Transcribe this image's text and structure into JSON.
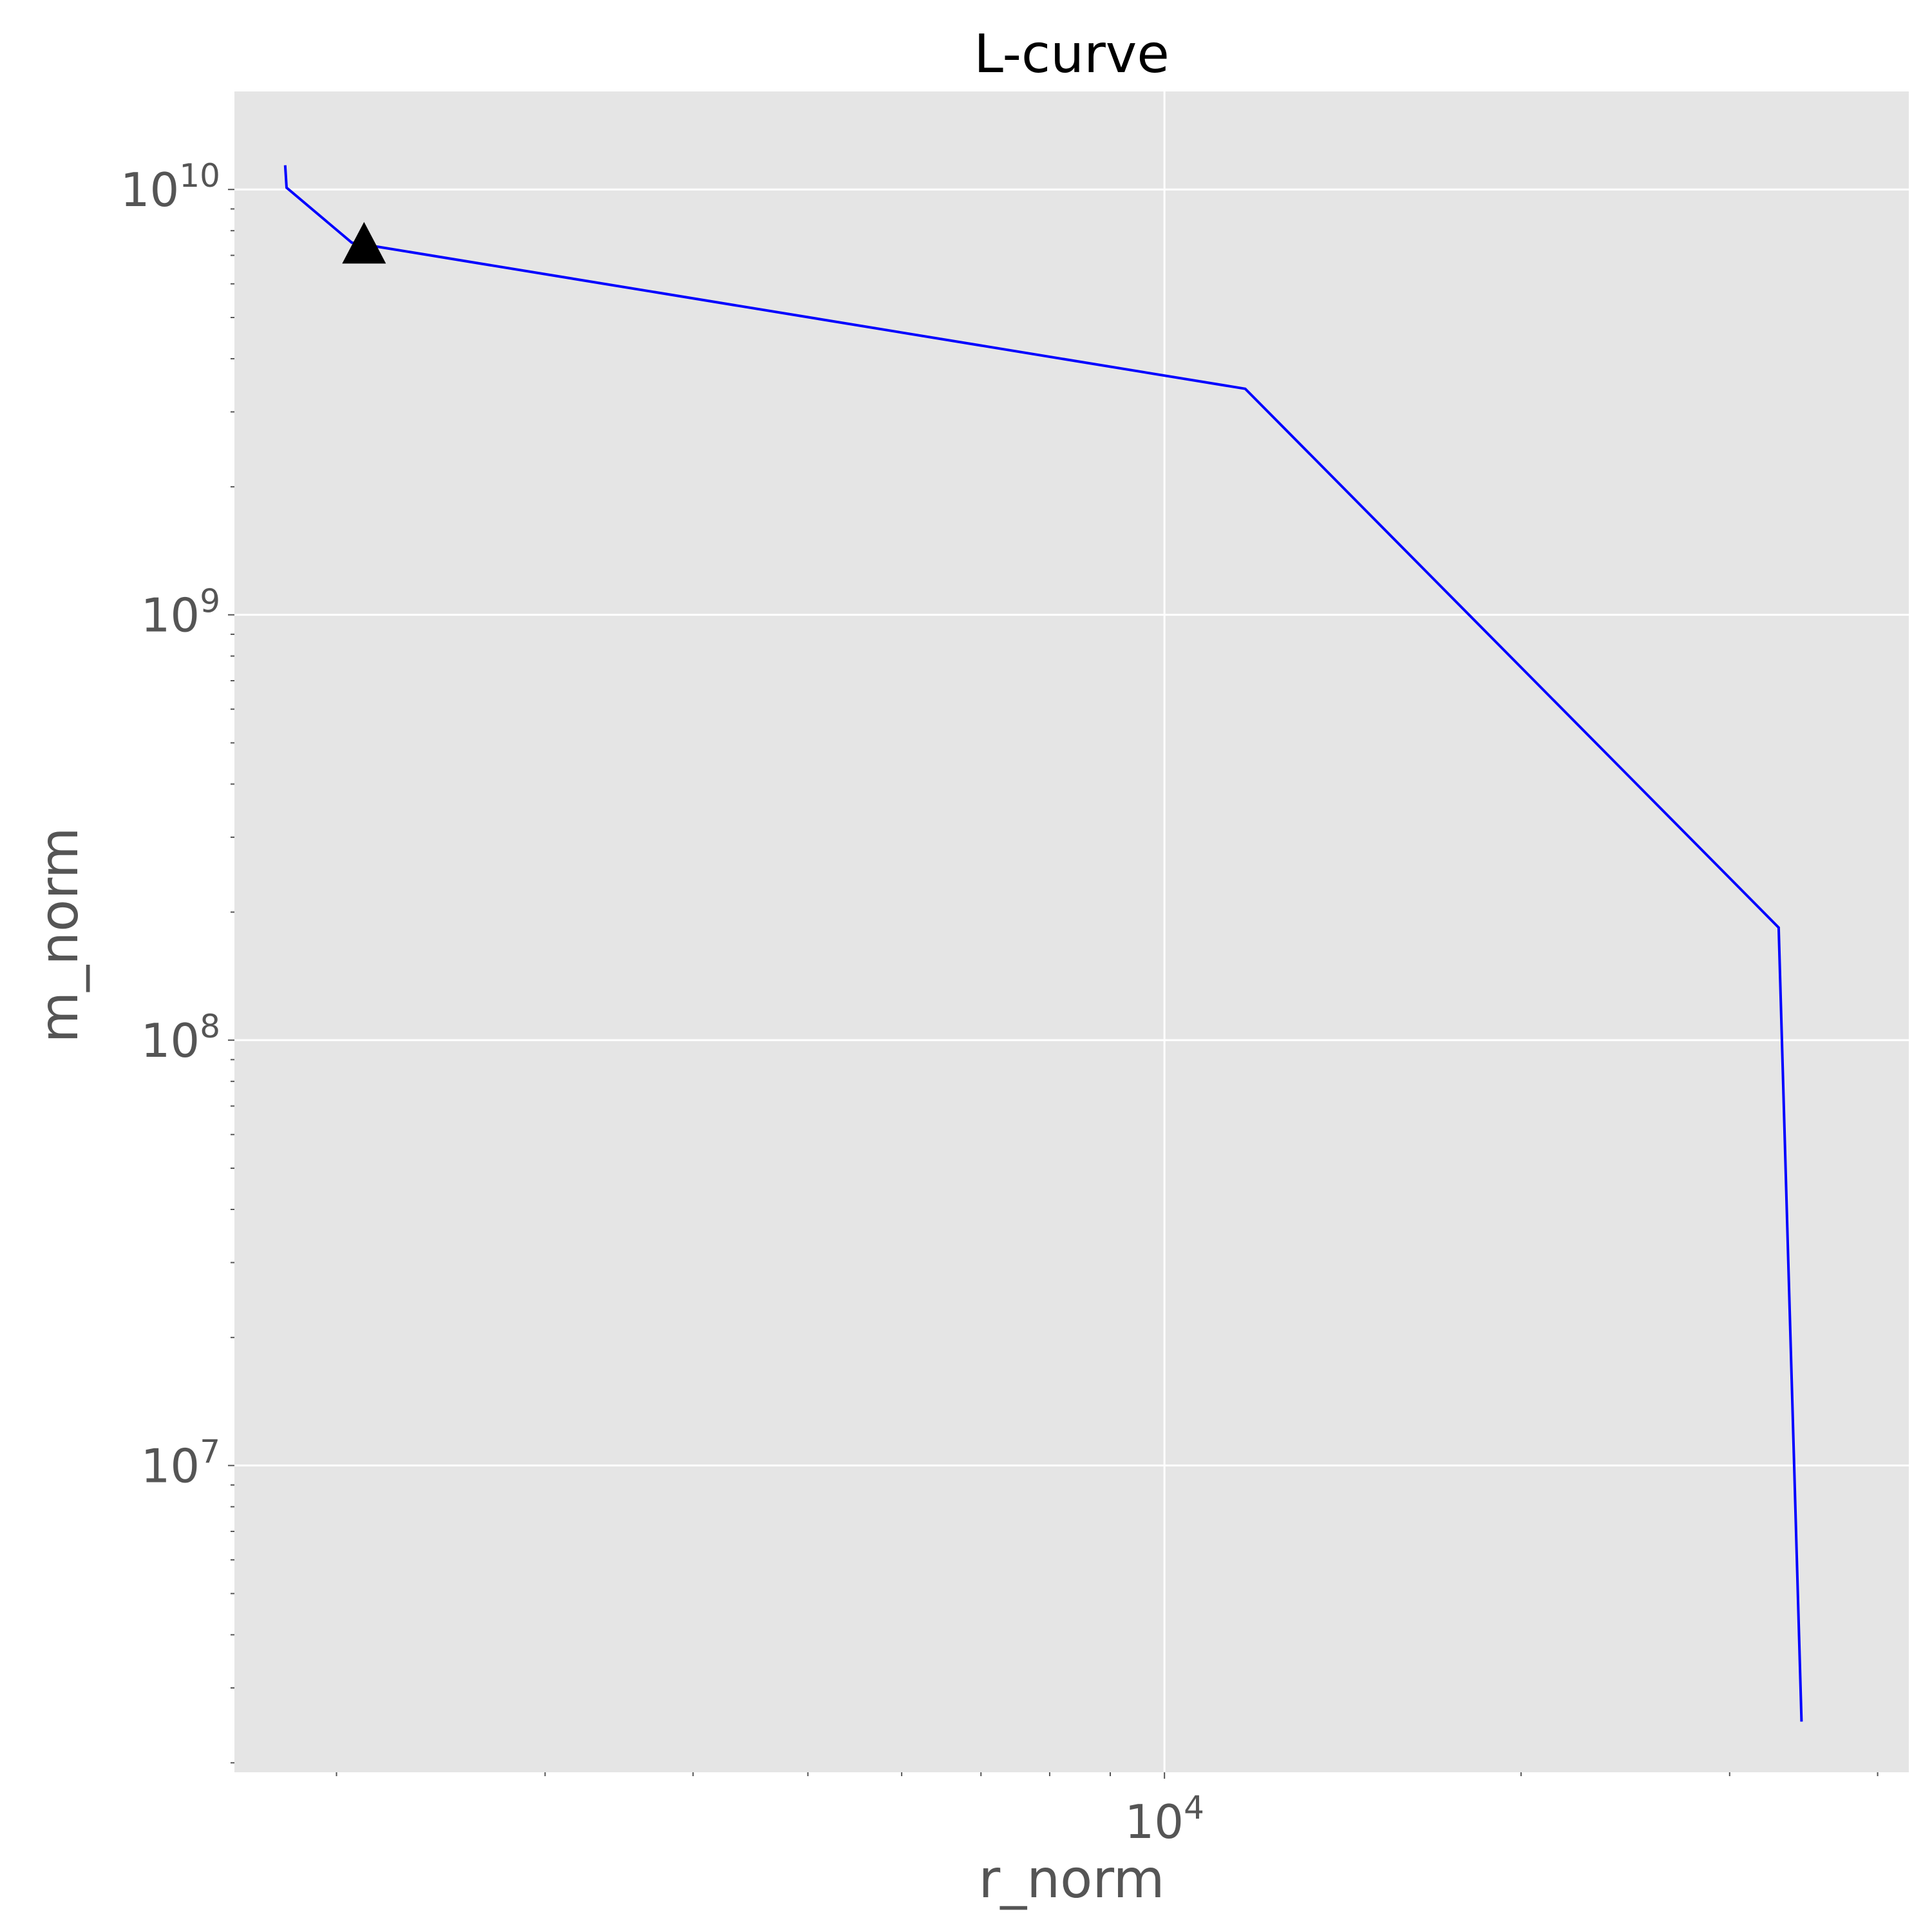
{
  "chart_data": {
    "type": "line",
    "title": "L-curve",
    "xlabel": "r_norm",
    "ylabel": "m_norm",
    "xscale": "log",
    "yscale": "log",
    "xlim": [
      1640,
      42500
    ],
    "ylim": [
      1900000,
      17000000000
    ],
    "grid": true,
    "background_color": "#e5e5e5",
    "grid_color": "#ffffff",
    "x_major_ticks": [
      {
        "value": 10000,
        "base": "10",
        "exp": "4"
      }
    ],
    "y_major_ticks": [
      {
        "value": 10000000,
        "base": "10",
        "exp": "7"
      },
      {
        "value": 100000000,
        "base": "10",
        "exp": "8"
      },
      {
        "value": 1000000000,
        "base": "10",
        "exp": "9"
      },
      {
        "value": 10000000000,
        "base": "10",
        "exp": "10"
      }
    ],
    "series": [
      {
        "color": "#0000ff",
        "x": [
          1810,
          1815,
          2060,
          2125,
          11700,
          33000,
          34500
        ],
        "y": [
          11400000000,
          10100000000,
          7500000000,
          7400000000,
          3400000000,
          184000000,
          2500000
        ]
      }
    ],
    "marker": {
      "shape": "triangle",
      "color": "#000000",
      "x": 2110,
      "y": 7450000000
    }
  }
}
